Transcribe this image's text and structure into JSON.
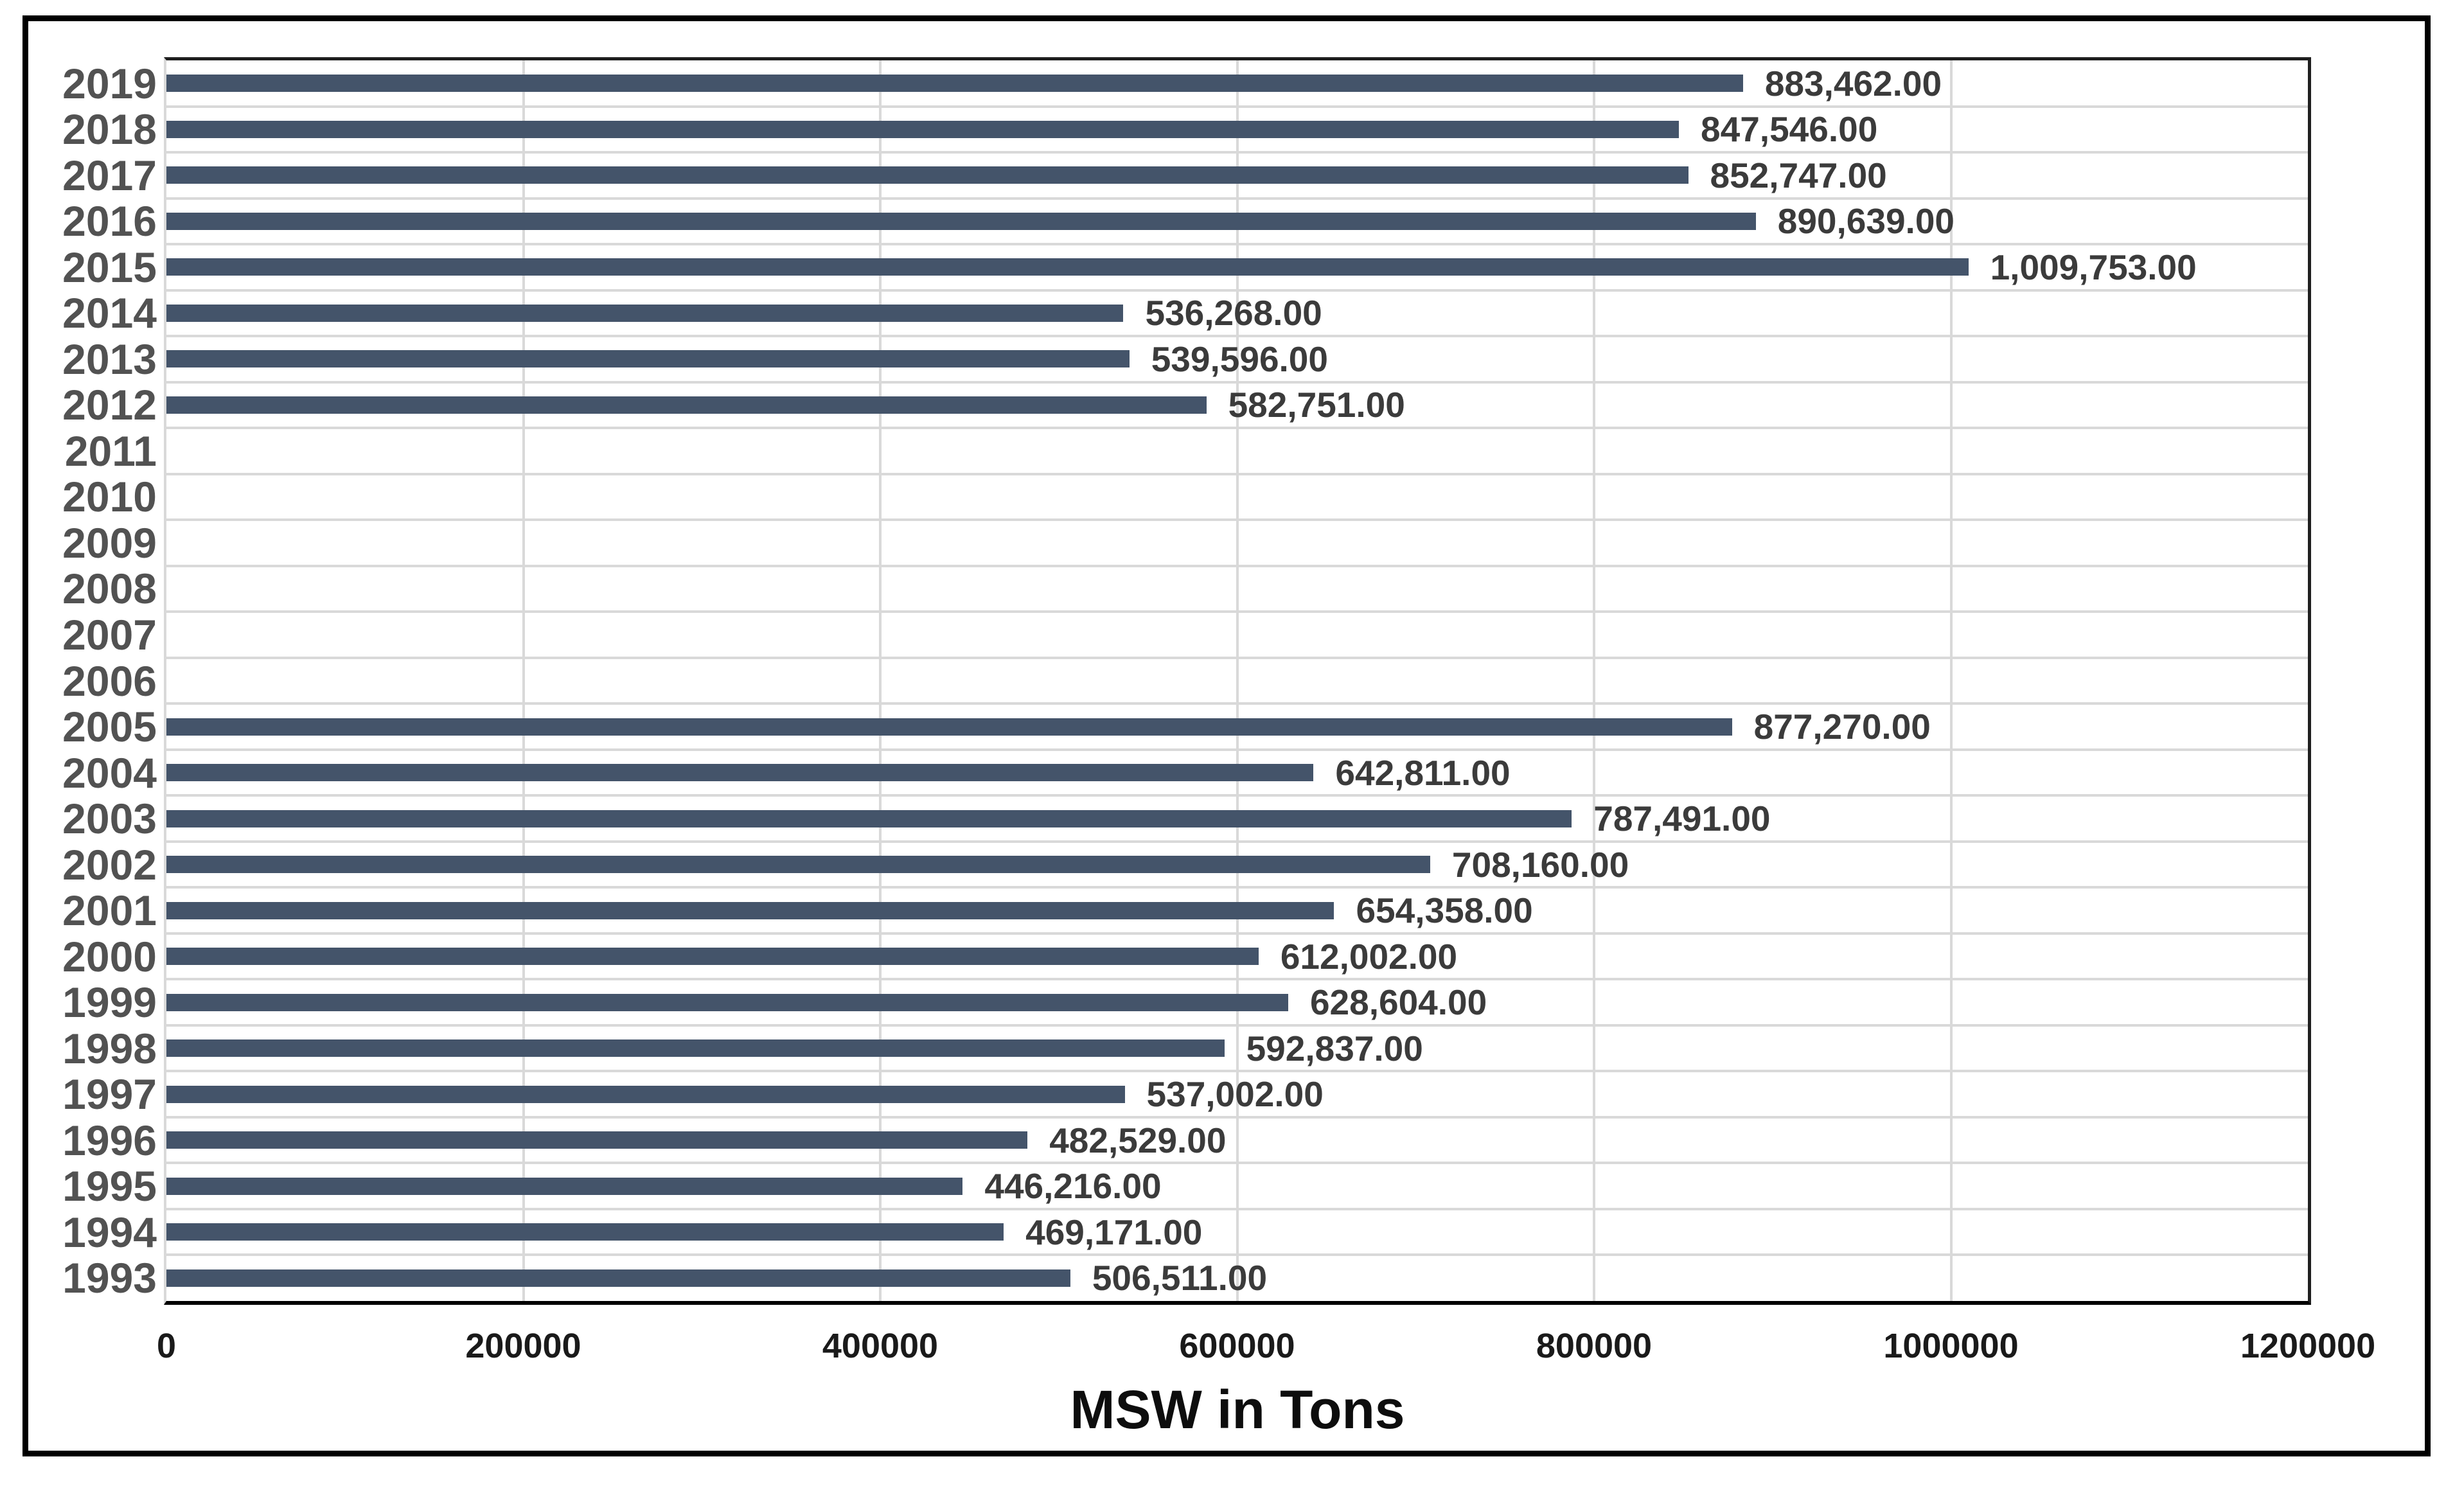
{
  "chart_data": {
    "type": "bar",
    "orientation": "horizontal",
    "title": "",
    "xlabel": "MSW in Tons",
    "ylabel": "",
    "xlim": [
      0,
      1200000
    ],
    "x_ticks": [
      0,
      200000,
      400000,
      600000,
      800000,
      1000000,
      1200000
    ],
    "x_tick_labels": [
      "0",
      "200000",
      "400000",
      "600000",
      "800000",
      "1000000",
      "1200000"
    ],
    "grid": true,
    "legend": "none",
    "categories": [
      "2019",
      "2018",
      "2017",
      "2016",
      "2015",
      "2014",
      "2013",
      "2012",
      "2011",
      "2010",
      "2009",
      "2008",
      "2007",
      "2006",
      "2005",
      "2004",
      "2003",
      "2002",
      "2001",
      "2000",
      "1999",
      "1998",
      "1997",
      "1996",
      "1995",
      "1994",
      "1993"
    ],
    "values": [
      883462,
      847546,
      852747,
      890639,
      1009753,
      536268,
      539596,
      582751,
      null,
      null,
      null,
      null,
      null,
      null,
      877270,
      642811,
      787491,
      708160,
      654358,
      612002,
      628604,
      592837,
      537002,
      482529,
      446216,
      469171,
      506511
    ],
    "data_labels": [
      "883,462.00",
      "847,546.00",
      "852,747.00",
      "890,639.00",
      "1,009,753.00",
      "536,268.00",
      "539,596.00",
      "582,751.00",
      null,
      null,
      null,
      null,
      null,
      null,
      "877,270.00",
      "642,811.00",
      "787,491.00",
      "708,160.00",
      "654,358.00",
      "612,002.00",
      "628,604.00",
      "592,837.00",
      "537,002.00",
      "482,529.00",
      "446,216.00",
      "469,171.00",
      "506,511.00"
    ],
    "colors": {
      "bar": "#44546a",
      "gridline": "#d9d9d9",
      "plot_border": "#1f1f1f",
      "axis_line": "#000000",
      "category_label": "#525252",
      "data_label": "#3b3b3b",
      "tick_label": "#1a1a1a",
      "axis_title": "#0d0d0d"
    }
  }
}
